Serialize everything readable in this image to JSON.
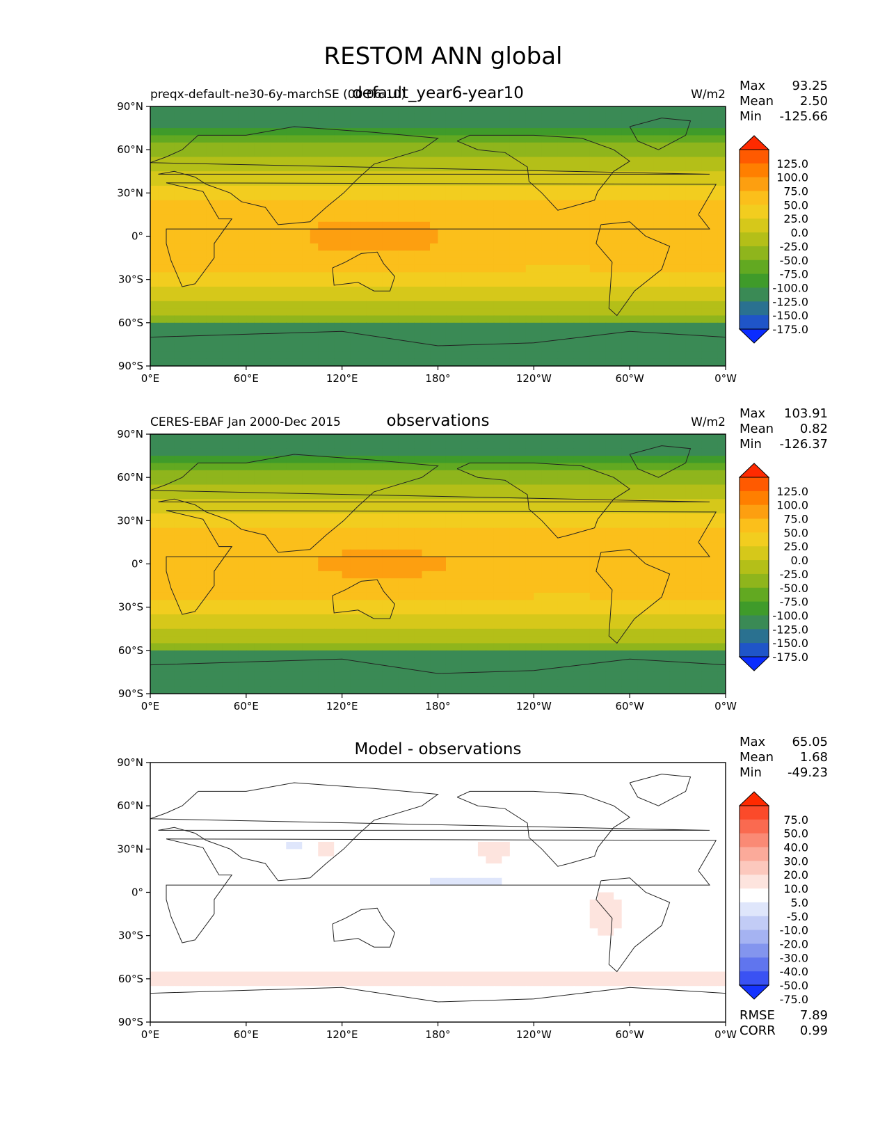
{
  "figure": {
    "title": "RESTOM ANN global"
  },
  "panels": [
    {
      "id": "model",
      "left_label": "preqx-default-ne30-6y-marchSE (00 06-10)",
      "center_title": "default_year6-year10",
      "units": "W/m2",
      "stats": [
        {
          "label": "Max",
          "value": "93.25"
        },
        {
          "label": "Mean",
          "value": "2.50"
        },
        {
          "label": "Min",
          "value": "-125.66"
        }
      ],
      "extra_stats": []
    },
    {
      "id": "obs",
      "left_label": "CERES-EBAF Jan 2000-Dec 2015",
      "center_title": "observations",
      "units": "W/m2",
      "stats": [
        {
          "label": "Max",
          "value": "103.91"
        },
        {
          "label": "Mean",
          "value": "0.82"
        },
        {
          "label": "Min",
          "value": "-126.37"
        }
      ],
      "extra_stats": []
    },
    {
      "id": "diff",
      "left_label": "",
      "center_title": "Model - observations",
      "units": "",
      "stats": [
        {
          "label": "Max",
          "value": "65.05"
        },
        {
          "label": "Mean",
          "value": "1.68"
        },
        {
          "label": "Min",
          "value": "-49.23"
        }
      ],
      "extra_stats": [
        {
          "label": "RMSE",
          "value": "7.89"
        },
        {
          "label": "CORR",
          "value": "0.99"
        }
      ]
    }
  ],
  "axes": {
    "lon_ticks": [
      "0°E",
      "60°E",
      "120°E",
      "180°",
      "120°W",
      "60°W",
      "0°W"
    ],
    "lat_ticks": [
      "90°N",
      "60°N",
      "30°N",
      "0°",
      "30°S",
      "60°S",
      "90°S"
    ],
    "lon_range": [
      0,
      360
    ],
    "lat_range": [
      -90,
      90
    ]
  },
  "colorbars": {
    "field": {
      "labels": [
        "125.0",
        "100.0",
        "75.0",
        "50.0",
        "25.0",
        "0.0",
        "-25.0",
        "-50.0",
        "-75.0",
        "-100.0",
        "-125.0",
        "-150.0",
        "-175.0"
      ],
      "colors": [
        "#ff2a00",
        "#ff5a00",
        "#ff7f00",
        "#fd9f10",
        "#fbbf1b",
        "#f2cd1f",
        "#d6c81a",
        "#b4bf18",
        "#8fb51c",
        "#62a921",
        "#3f9b2a",
        "#3a8a55",
        "#2a7190",
        "#1f55c8",
        "#0a2cff"
      ]
    },
    "diff": {
      "labels": [
        "75.0",
        "50.0",
        "40.0",
        "30.0",
        "20.0",
        "10.0",
        "5.0",
        "-5.0",
        "-10.0",
        "-20.0",
        "-30.0",
        "-40.0",
        "-50.0",
        "-75.0"
      ],
      "colors": [
        "#ff2a00",
        "#fb4a2a",
        "#fa6a50",
        "#fa8a75",
        "#fbaa9a",
        "#fcc8bd",
        "#fde4de",
        "#ffffff",
        "#dfe6fb",
        "#c2ccf6",
        "#a5b3f2",
        "#8395ee",
        "#6075ee",
        "#3a52f3",
        "#1433ff"
      ]
    }
  },
  "chart_data": [
    {
      "type": "heatmap",
      "title": "default_year6-year10",
      "units": "W/m2",
      "x_ticks": [
        "0°E",
        "60°E",
        "120°E",
        "180°",
        "120°W",
        "60°W",
        "0°W"
      ],
      "y_ticks": [
        "90°N",
        "60°N",
        "30°N",
        "0°",
        "30°S",
        "60°S",
        "90°S"
      ],
      "xlim": [
        0,
        360
      ],
      "ylim": [
        -90,
        90
      ],
      "colorbar_levels": [
        -175,
        -150,
        -125,
        -100,
        -75,
        -50,
        -25,
        0,
        25,
        50,
        75,
        100,
        125
      ],
      "stats": {
        "max": 93.25,
        "mean": 2.5,
        "min": -125.66
      }
    },
    {
      "type": "heatmap",
      "title": "observations",
      "units": "W/m2",
      "x_ticks": [
        "0°E",
        "60°E",
        "120°E",
        "180°",
        "120°W",
        "60°W",
        "0°W"
      ],
      "y_ticks": [
        "90°N",
        "60°N",
        "30°N",
        "0°",
        "30°S",
        "60°S",
        "90°S"
      ],
      "xlim": [
        0,
        360
      ],
      "ylim": [
        -90,
        90
      ],
      "colorbar_levels": [
        -175,
        -150,
        -125,
        -100,
        -75,
        -50,
        -25,
        0,
        25,
        50,
        75,
        100,
        125
      ],
      "stats": {
        "max": 103.91,
        "mean": 0.82,
        "min": -126.37
      }
    },
    {
      "type": "heatmap",
      "title": "Model - observations",
      "x_ticks": [
        "0°E",
        "60°E",
        "120°E",
        "180°",
        "120°W",
        "60°W",
        "0°W"
      ],
      "y_ticks": [
        "90°N",
        "60°N",
        "30°N",
        "0°",
        "30°S",
        "60°S",
        "90°S"
      ],
      "xlim": [
        0,
        360
      ],
      "ylim": [
        -90,
        90
      ],
      "colorbar_levels": [
        -75,
        -50,
        -40,
        -30,
        -20,
        -10,
        -5,
        5,
        10,
        20,
        30,
        40,
        50,
        75
      ],
      "stats": {
        "max": 65.05,
        "mean": 1.68,
        "min": -49.23,
        "rmse": 7.89,
        "corr": 0.99
      }
    }
  ]
}
